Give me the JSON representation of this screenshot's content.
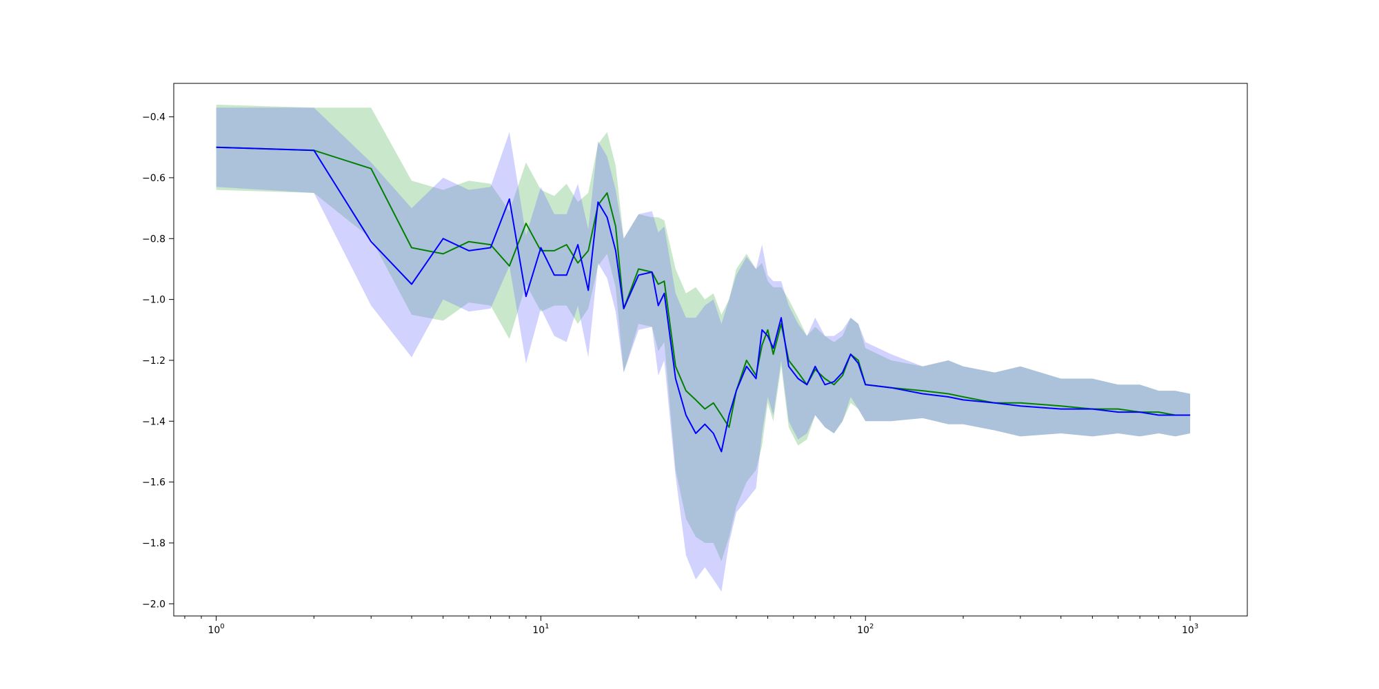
{
  "chart_data": {
    "type": "line",
    "title": "",
    "xlabel": "",
    "ylabel": "",
    "xscale": "log",
    "xlim": [
      0.74,
      1500
    ],
    "ylim": [
      -2.04,
      -0.29
    ],
    "grid": false,
    "x_ticks": [
      {
        "value": 1,
        "base": "10",
        "exp": "0"
      },
      {
        "value": 10,
        "base": "10",
        "exp": "1"
      },
      {
        "value": 100,
        "base": "10",
        "exp": "2"
      },
      {
        "value": 1000,
        "base": "10",
        "exp": "3"
      }
    ],
    "y_ticks": [
      {
        "value": -0.4,
        "label": "−0.4"
      },
      {
        "value": -0.6,
        "label": "−0.6"
      },
      {
        "value": -0.8,
        "label": "−0.8"
      },
      {
        "value": -1.0,
        "label": "−1.0"
      },
      {
        "value": -1.2,
        "label": "−1.2"
      },
      {
        "value": -1.4,
        "label": "−1.4"
      },
      {
        "value": -1.6,
        "label": "−1.6"
      },
      {
        "value": -1.8,
        "label": "−1.8"
      },
      {
        "value": -2.0,
        "label": "−2.0"
      }
    ],
    "series": [
      {
        "color": "#008000",
        "band_color": "#4caf50",
        "x": [
          1,
          2,
          3,
          4,
          5,
          6,
          7,
          8,
          9,
          10,
          11,
          12,
          13,
          14,
          15,
          16,
          17,
          18,
          20,
          22,
          23,
          24,
          26,
          28,
          30,
          32,
          34,
          36,
          38,
          40,
          43,
          46,
          48,
          50,
          52,
          55,
          58,
          62,
          66,
          70,
          75,
          80,
          85,
          90,
          95,
          100,
          120,
          150,
          180,
          200,
          250,
          300,
          400,
          500,
          600,
          700,
          800,
          900,
          1000
        ],
        "y": [
          -0.5,
          -0.51,
          -0.57,
          -0.83,
          -0.85,
          -0.81,
          -0.82,
          -0.89,
          -0.75,
          -0.84,
          -0.84,
          -0.82,
          -0.88,
          -0.84,
          -0.69,
          -0.65,
          -0.76,
          -1.03,
          -0.9,
          -0.91,
          -0.95,
          -0.94,
          -1.22,
          -1.3,
          -1.33,
          -1.36,
          -1.34,
          -1.38,
          -1.42,
          -1.3,
          -1.2,
          -1.25,
          -1.15,
          -1.1,
          -1.18,
          -1.08,
          -1.2,
          -1.24,
          -1.28,
          -1.23,
          -1.26,
          -1.28,
          -1.25,
          -1.18,
          -1.2,
          -1.28,
          -1.29,
          -1.3,
          -1.31,
          -1.32,
          -1.34,
          -1.34,
          -1.35,
          -1.36,
          -1.36,
          -1.37,
          -1.37,
          -1.38,
          -1.38
        ],
        "upper": [
          -0.36,
          -0.37,
          -0.37,
          -0.61,
          -0.64,
          -0.61,
          -0.62,
          -0.71,
          -0.55,
          -0.64,
          -0.66,
          -0.62,
          -0.68,
          -0.65,
          -0.49,
          -0.45,
          -0.56,
          -0.8,
          -0.72,
          -0.73,
          -0.73,
          -0.74,
          -0.9,
          -0.98,
          -0.96,
          -1.0,
          -0.98,
          -1.05,
          -1.0,
          -0.9,
          -0.85,
          -0.9,
          -0.88,
          -0.94,
          -0.96,
          -0.96,
          -1.0,
          -1.06,
          -1.12,
          -1.09,
          -1.12,
          -1.14,
          -1.12,
          -1.06,
          -1.08,
          -1.16,
          -1.2,
          -1.22,
          -1.2,
          -1.22,
          -1.24,
          -1.22,
          -1.26,
          -1.26,
          -1.28,
          -1.28,
          -1.3,
          -1.3,
          -1.31
        ],
        "lower": [
          -0.64,
          -0.65,
          -0.8,
          -1.05,
          -1.07,
          -1.01,
          -1.02,
          -1.13,
          -0.95,
          -1.04,
          -1.02,
          -1.02,
          -1.08,
          -1.03,
          -0.89,
          -0.85,
          -0.96,
          -1.24,
          -1.08,
          -1.09,
          -1.17,
          -1.14,
          -1.56,
          -1.72,
          -1.78,
          -1.8,
          -1.8,
          -1.86,
          -1.78,
          -1.68,
          -1.6,
          -1.56,
          -1.48,
          -1.34,
          -1.4,
          -1.22,
          -1.42,
          -1.48,
          -1.46,
          -1.38,
          -1.42,
          -1.44,
          -1.4,
          -1.34,
          -1.36,
          -1.4,
          -1.4,
          -1.39,
          -1.41,
          -1.41,
          -1.43,
          -1.45,
          -1.44,
          -1.45,
          -1.44,
          -1.45,
          -1.44,
          -1.45,
          -1.44
        ]
      },
      {
        "color": "#0000ff",
        "band_color": "#6b6bff",
        "x": [
          1,
          2,
          3,
          4,
          5,
          6,
          7,
          8,
          9,
          10,
          11,
          12,
          13,
          14,
          15,
          16,
          17,
          18,
          20,
          22,
          23,
          24,
          26,
          28,
          30,
          32,
          34,
          36,
          38,
          40,
          43,
          46,
          48,
          50,
          52,
          55,
          58,
          62,
          66,
          70,
          75,
          80,
          85,
          90,
          95,
          100,
          120,
          150,
          180,
          200,
          250,
          300,
          400,
          500,
          600,
          700,
          800,
          900,
          1000
        ],
        "y": [
          -0.5,
          -0.51,
          -0.81,
          -0.95,
          -0.8,
          -0.84,
          -0.83,
          -0.67,
          -0.99,
          -0.83,
          -0.92,
          -0.92,
          -0.82,
          -0.97,
          -0.68,
          -0.73,
          -0.84,
          -1.03,
          -0.92,
          -0.91,
          -1.02,
          -0.98,
          -1.26,
          -1.38,
          -1.44,
          -1.41,
          -1.44,
          -1.5,
          -1.38,
          -1.3,
          -1.22,
          -1.26,
          -1.1,
          -1.12,
          -1.16,
          -1.06,
          -1.22,
          -1.26,
          -1.28,
          -1.22,
          -1.28,
          -1.27,
          -1.24,
          -1.18,
          -1.21,
          -1.28,
          -1.29,
          -1.31,
          -1.32,
          -1.33,
          -1.34,
          -1.35,
          -1.36,
          -1.36,
          -1.37,
          -1.37,
          -1.38,
          -1.38,
          -1.38
        ],
        "upper": [
          -0.37,
          -0.37,
          -0.55,
          -0.7,
          -0.6,
          -0.64,
          -0.63,
          -0.45,
          -0.79,
          -0.63,
          -0.72,
          -0.72,
          -0.62,
          -0.77,
          -0.48,
          -0.53,
          -0.64,
          -0.8,
          -0.72,
          -0.71,
          -0.78,
          -0.76,
          -0.98,
          -1.06,
          -1.06,
          -1.02,
          -1.0,
          -1.08,
          -1.0,
          -0.92,
          -0.86,
          -0.9,
          -0.82,
          -0.92,
          -0.94,
          -0.94,
          -1.02,
          -1.08,
          -1.12,
          -1.06,
          -1.12,
          -1.12,
          -1.1,
          -1.06,
          -1.08,
          -1.14,
          -1.18,
          -1.22,
          -1.2,
          -1.22,
          -1.24,
          -1.22,
          -1.26,
          -1.26,
          -1.28,
          -1.28,
          -1.3,
          -1.3,
          -1.31
        ],
        "lower": [
          -0.63,
          -0.65,
          -1.02,
          -1.19,
          -1.0,
          -1.04,
          -1.03,
          -0.89,
          -1.21,
          -1.03,
          -1.12,
          -1.14,
          -1.02,
          -1.19,
          -0.88,
          -0.93,
          -1.04,
          -1.24,
          -1.1,
          -1.09,
          -1.25,
          -1.2,
          -1.58,
          -1.84,
          -1.92,
          -1.88,
          -1.92,
          -1.96,
          -1.8,
          -1.7,
          -1.66,
          -1.62,
          -1.44,
          -1.32,
          -1.38,
          -1.2,
          -1.4,
          -1.46,
          -1.44,
          -1.38,
          -1.42,
          -1.44,
          -1.4,
          -1.32,
          -1.36,
          -1.4,
          -1.4,
          -1.39,
          -1.41,
          -1.41,
          -1.43,
          -1.45,
          -1.44,
          -1.45,
          -1.44,
          -1.45,
          -1.44,
          -1.45,
          -1.44
        ]
      }
    ]
  }
}
